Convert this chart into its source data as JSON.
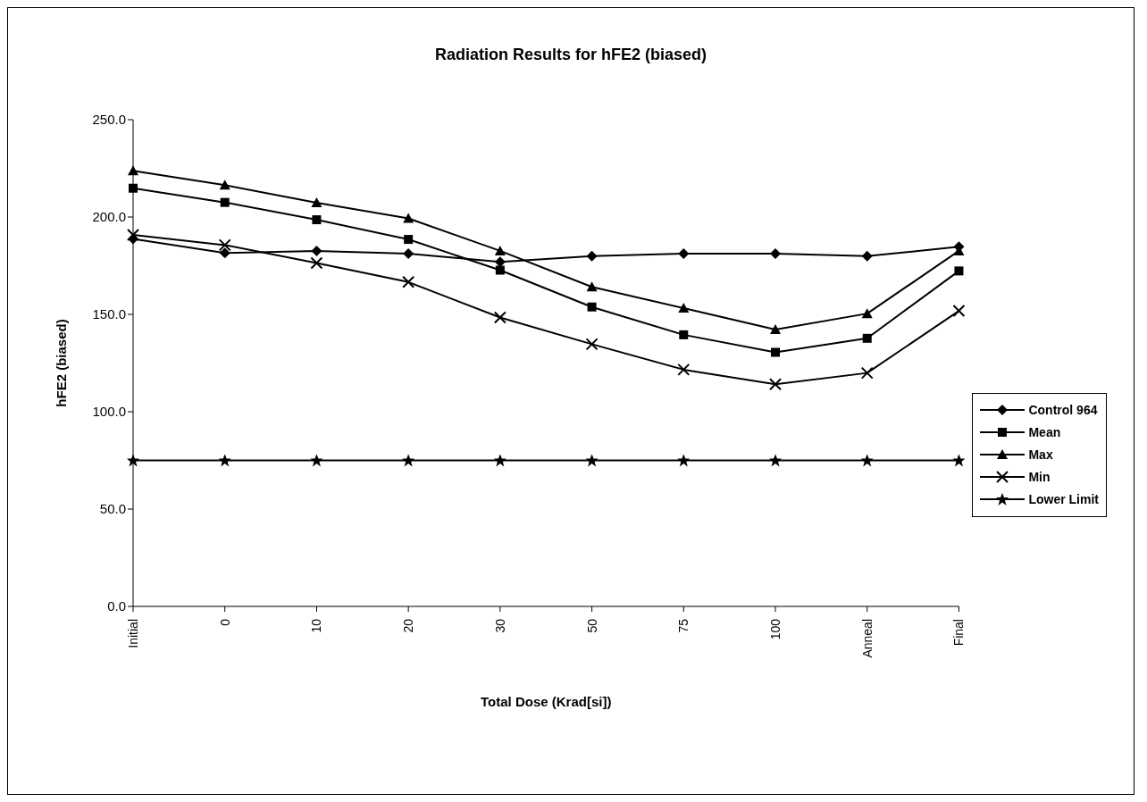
{
  "chart_data": {
    "type": "line",
    "title": "Radiation Results for hFE2 (biased)",
    "xlabel": "Total Dose (Krad[si])",
    "ylabel": "hFE2 (biased)",
    "categories": [
      "Initial",
      "0",
      "10",
      "20",
      "30",
      "50",
      "75",
      "100",
      "Anneal",
      "Final"
    ],
    "series": [
      {
        "name": "Control 964",
        "color": "#000000",
        "marker": "diamond",
        "values": [
          188.8,
          181.5,
          182.6,
          181.2,
          177,
          179.9,
          181.2,
          181.2,
          179.9,
          184.7
        ]
      },
      {
        "name": "Mean",
        "color": "#000000",
        "marker": "square",
        "values": [
          214.8,
          207.5,
          198.6,
          188.5,
          172.7,
          153.8,
          139.5,
          130.5,
          137.7,
          172.3
        ]
      },
      {
        "name": "Max",
        "color": "#000000",
        "marker": "triangle",
        "values": [
          223.7,
          216.4,
          207.3,
          199.3,
          182.6,
          164.1,
          153.2,
          142.2,
          150.4,
          182.6
        ]
      },
      {
        "name": "Min",
        "color": "#000000",
        "marker": "cross",
        "values": [
          190.8,
          185.6,
          176.4,
          166.6,
          148.4,
          134.7,
          121.6,
          114.1,
          119.9,
          151.8
        ]
      },
      {
        "name": "Lower Limit",
        "color": "#000000",
        "marker": "star",
        "values": [
          75,
          75,
          75,
          75,
          75,
          75,
          75,
          75,
          75,
          75
        ]
      }
    ],
    "ylim": [
      0,
      250
    ],
    "yticks": [
      {
        "value": 0,
        "label": "0.0"
      },
      {
        "value": 50,
        "label": "50.0"
      },
      {
        "value": 100,
        "label": "100.0"
      },
      {
        "value": 150,
        "label": "150.0"
      },
      {
        "value": 200,
        "label": "200.0"
      },
      {
        "value": 250,
        "label": "250.0"
      }
    ],
    "grid": false,
    "legend": "right",
    "line_style": "solid"
  }
}
